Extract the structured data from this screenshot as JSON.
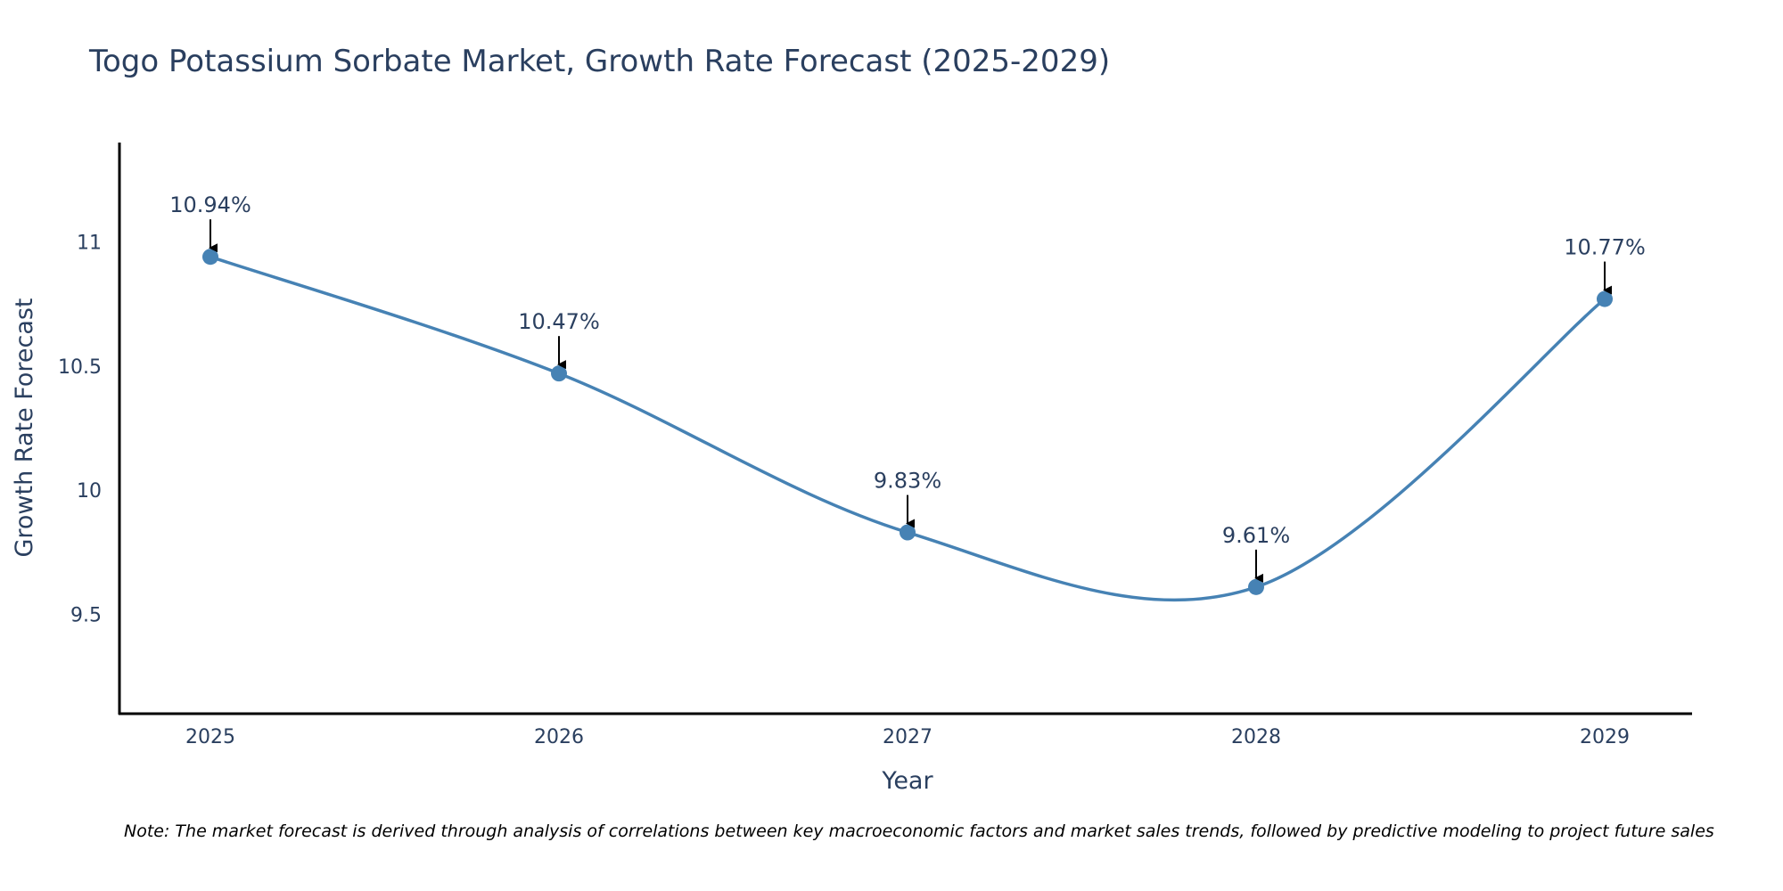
{
  "chart_data": {
    "type": "line",
    "title": "Togo Potassium Sorbate Market, Growth Rate Forecast (2025-2029)",
    "xlabel": "Year",
    "ylabel": "Growth Rate Forecast",
    "categories": [
      "2025",
      "2026",
      "2027",
      "2028",
      "2029"
    ],
    "series": [
      {
        "name": "Growth Rate Forecast",
        "values": [
          10.94,
          10.47,
          9.83,
          9.61,
          10.77
        ]
      }
    ],
    "data_labels": [
      "10.94%",
      "10.47%",
      "9.83%",
      "9.61%",
      "10.77%"
    ],
    "ylim": [
      9.1,
      11.4
    ],
    "yticks": [
      9.5,
      10,
      10.5,
      11
    ],
    "ytick_labels": [
      "9.5",
      "10",
      "10.5",
      "11"
    ],
    "line_shape": "spline",
    "line_color": "#4682b4",
    "marker_color": "#4682b4",
    "legend": "none",
    "grid": false
  },
  "note": "Note: The market forecast is derived through analysis of correlations between key macroeconomic factors and market sales trends, followed by predictive modeling to project future sales"
}
